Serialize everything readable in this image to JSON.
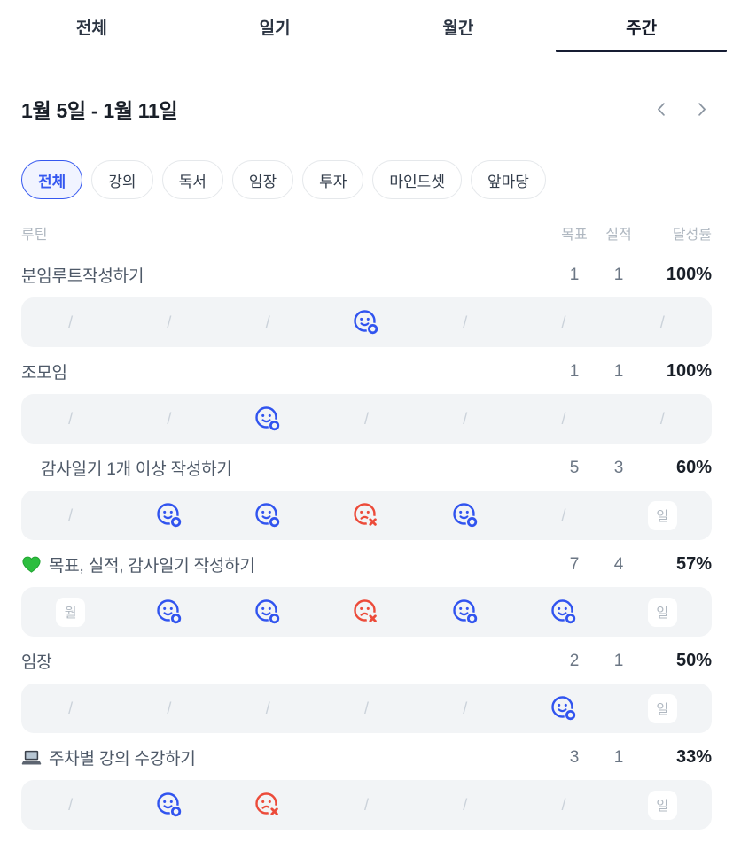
{
  "tabs": [
    {
      "key": "all",
      "label": "전체",
      "active": false
    },
    {
      "key": "diary",
      "label": "일기",
      "active": false
    },
    {
      "key": "monthly",
      "label": "월간",
      "active": false
    },
    {
      "key": "weekly",
      "label": "주간",
      "active": true
    }
  ],
  "week": {
    "range": "1월 5일 - 1월 11일"
  },
  "filters": [
    {
      "key": "all",
      "label": "전체",
      "active": true
    },
    {
      "key": "lecture",
      "label": "강의",
      "active": false
    },
    {
      "key": "reading",
      "label": "독서",
      "active": false
    },
    {
      "key": "field-trip",
      "label": "임장",
      "active": false
    },
    {
      "key": "investing",
      "label": "투자",
      "active": false
    },
    {
      "key": "mindset",
      "label": "마인드셋",
      "active": false
    },
    {
      "key": "front-yard",
      "label": "앞마당",
      "active": false
    }
  ],
  "table_header": {
    "routine": "루틴",
    "goal": "목표",
    "actual": "실적",
    "rate": "달성률"
  },
  "glyphs": {
    "empty_day": "/"
  },
  "routines": [
    {
      "title": "분임루트작성하기",
      "icon": null,
      "indent": false,
      "goal": "1",
      "actual": "1",
      "rate": "100%",
      "days": [
        "slash",
        "slash",
        "slash",
        "success",
        "slash",
        "slash",
        "slash"
      ]
    },
    {
      "title": "조모임",
      "icon": null,
      "indent": false,
      "goal": "1",
      "actual": "1",
      "rate": "100%",
      "days": [
        "slash",
        "slash",
        "success",
        "slash",
        "slash",
        "slash",
        "slash"
      ]
    },
    {
      "title": "감사일기 1개 이상 작성하기",
      "icon": null,
      "indent": true,
      "goal": "5",
      "actual": "3",
      "rate": "60%",
      "days": [
        "slash",
        "success",
        "success",
        "fail",
        "success",
        "slash",
        "day:일"
      ]
    },
    {
      "title": "목표, 실적, 감사일기 작성하기",
      "icon": "green-heart",
      "indent": false,
      "goal": "7",
      "actual": "4",
      "rate": "57%",
      "days": [
        "day:월",
        "success",
        "success",
        "fail",
        "success",
        "success",
        "day:일"
      ]
    },
    {
      "title": "임장",
      "icon": null,
      "indent": false,
      "goal": "2",
      "actual": "1",
      "rate": "50%",
      "days": [
        "slash",
        "slash",
        "slash",
        "slash",
        "slash",
        "success",
        "day:일"
      ]
    },
    {
      "title": "주차별 강의 수강하기",
      "icon": "laptop",
      "indent": false,
      "goal": "3",
      "actual": "1",
      "rate": "33%",
      "days": [
        "slash",
        "success",
        "fail",
        "slash",
        "slash",
        "slash",
        "day:일"
      ]
    }
  ],
  "colors": {
    "accent_blue": "#3154EF",
    "fail_red": "#EC4B3A",
    "tab_underline": "#161D33",
    "strip_bg": "#F2F4F6",
    "chip_active_bg": "#F1F4FF"
  }
}
